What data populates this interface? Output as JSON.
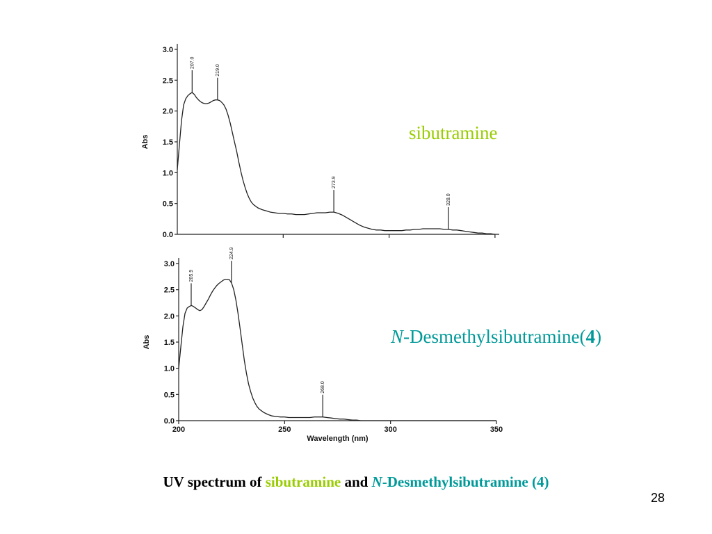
{
  "chart_data": [
    {
      "type": "line",
      "ylabel": "Abs",
      "ylim": [
        0.0,
        3.0
      ],
      "yticks": [
        "0.0",
        "0.5",
        "1.0",
        "1.5",
        "2.0",
        "2.5",
        "3.0"
      ],
      "xlim": [
        200,
        352
      ],
      "legend_label": "sibutramine",
      "series": [
        {
          "name": "sibutramine",
          "x": [
            200,
            201,
            202,
            203,
            204,
            205,
            206,
            207,
            208,
            209,
            210,
            211,
            212,
            213,
            214,
            215,
            216,
            217,
            218,
            219,
            220,
            221,
            222,
            223,
            224,
            225,
            226,
            227,
            228,
            229,
            230,
            231,
            232,
            233,
            234,
            235,
            236,
            238,
            240,
            242,
            244,
            246,
            248,
            250,
            252,
            254,
            256,
            258,
            260,
            262,
            264,
            266,
            268,
            270,
            272,
            274,
            276,
            278,
            280,
            282,
            284,
            286,
            288,
            290,
            292,
            294,
            296,
            298,
            300,
            302,
            304,
            306,
            308,
            310,
            312,
            314,
            316,
            318,
            320,
            322,
            324,
            326,
            328,
            330,
            332,
            334,
            336,
            338,
            340,
            342,
            344,
            346,
            348,
            350
          ],
          "y": [
            1.05,
            1.45,
            1.85,
            2.1,
            2.2,
            2.25,
            2.28,
            2.3,
            2.27,
            2.22,
            2.18,
            2.15,
            2.13,
            2.12,
            2.12,
            2.13,
            2.15,
            2.17,
            2.18,
            2.18,
            2.17,
            2.14,
            2.1,
            2.03,
            1.93,
            1.8,
            1.65,
            1.5,
            1.35,
            1.18,
            1.02,
            0.88,
            0.76,
            0.66,
            0.58,
            0.52,
            0.48,
            0.43,
            0.4,
            0.38,
            0.36,
            0.35,
            0.34,
            0.34,
            0.33,
            0.33,
            0.32,
            0.32,
            0.32,
            0.33,
            0.34,
            0.35,
            0.35,
            0.35,
            0.36,
            0.36,
            0.34,
            0.31,
            0.27,
            0.23,
            0.19,
            0.15,
            0.12,
            0.1,
            0.08,
            0.07,
            0.07,
            0.06,
            0.06,
            0.06,
            0.06,
            0.06,
            0.07,
            0.07,
            0.08,
            0.08,
            0.09,
            0.09,
            0.09,
            0.09,
            0.09,
            0.08,
            0.08,
            0.07,
            0.07,
            0.06,
            0.05,
            0.04,
            0.03,
            0.02,
            0.02,
            0.01,
            0.01,
            0.0
          ]
        }
      ],
      "peaks": [
        {
          "x": 207.0,
          "label": "207.0"
        },
        {
          "x": 219.0,
          "label": "219.0"
        },
        {
          "x": 273.9,
          "label": "273.9"
        },
        {
          "x": 328.0,
          "label": "328.0"
        }
      ]
    },
    {
      "type": "line",
      "ylabel": "Abs",
      "xlabel": "Wavelength (nm)",
      "ylim": [
        0.0,
        3.0
      ],
      "yticks": [
        "0.0",
        "0.5",
        "1.0",
        "1.5",
        "2.0",
        "2.5",
        "3.0"
      ],
      "xlim": [
        200,
        350
      ],
      "xticks": [
        "200",
        "250",
        "300",
        "350"
      ],
      "legend_label": "N-Desmethylsibutramine(4)",
      "series": [
        {
          "name": "N-Desmethylsibutramine(4)",
          "x": [
            200,
            201,
            202,
            203,
            204,
            205,
            206,
            207,
            208,
            209,
            210,
            211,
            212,
            213,
            214,
            215,
            216,
            217,
            218,
            219,
            220,
            221,
            222,
            223,
            224,
            225,
            226,
            227,
            228,
            229,
            230,
            231,
            232,
            233,
            234,
            235,
            236,
            237,
            238,
            240,
            242,
            244,
            246,
            248,
            250,
            252,
            254,
            256,
            258,
            260,
            262,
            264,
            266,
            268,
            270,
            272,
            274,
            276,
            278,
            280,
            282,
            284,
            286,
            288,
            290,
            295,
            300,
            310,
            320,
            330,
            340,
            350
          ],
          "y": [
            1.0,
            1.4,
            1.8,
            2.05,
            2.15,
            2.18,
            2.2,
            2.18,
            2.15,
            2.12,
            2.1,
            2.12,
            2.18,
            2.25,
            2.32,
            2.4,
            2.47,
            2.53,
            2.58,
            2.62,
            2.65,
            2.68,
            2.7,
            2.7,
            2.69,
            2.62,
            2.5,
            2.3,
            2.05,
            1.75,
            1.45,
            1.15,
            0.9,
            0.7,
            0.55,
            0.43,
            0.34,
            0.27,
            0.22,
            0.16,
            0.12,
            0.09,
            0.08,
            0.07,
            0.07,
            0.06,
            0.06,
            0.06,
            0.06,
            0.06,
            0.06,
            0.07,
            0.07,
            0.07,
            0.06,
            0.05,
            0.04,
            0.03,
            0.03,
            0.02,
            0.01,
            0.01,
            0.0,
            0.0,
            0.0,
            0.0,
            0.0,
            0.0,
            0.0,
            0.0,
            0.0,
            0.0
          ]
        }
      ],
      "peaks": [
        {
          "x": 205.9,
          "label": "205.9"
        },
        {
          "x": 224.9,
          "label": "224.9"
        },
        {
          "x": 268.0,
          "label": "268.0"
        }
      ]
    }
  ],
  "labels": {
    "sibutramine": "sibutramine",
    "desmethyl_italic": "N",
    "desmethyl_rest": "-Desmethylsibutramine(",
    "desmethyl_bold": "4",
    "desmethyl_close": ")"
  },
  "caption": {
    "part1": "UV spectrum of ",
    "part2": "sibutramine",
    "part3": " and ",
    "part4": "N",
    "part5": "-Desmethylsibutramine (4)"
  },
  "page_number": "28",
  "colors": {
    "sibutramine": "#99cc00",
    "desmethyl": "#009999",
    "trace": "#222222"
  }
}
